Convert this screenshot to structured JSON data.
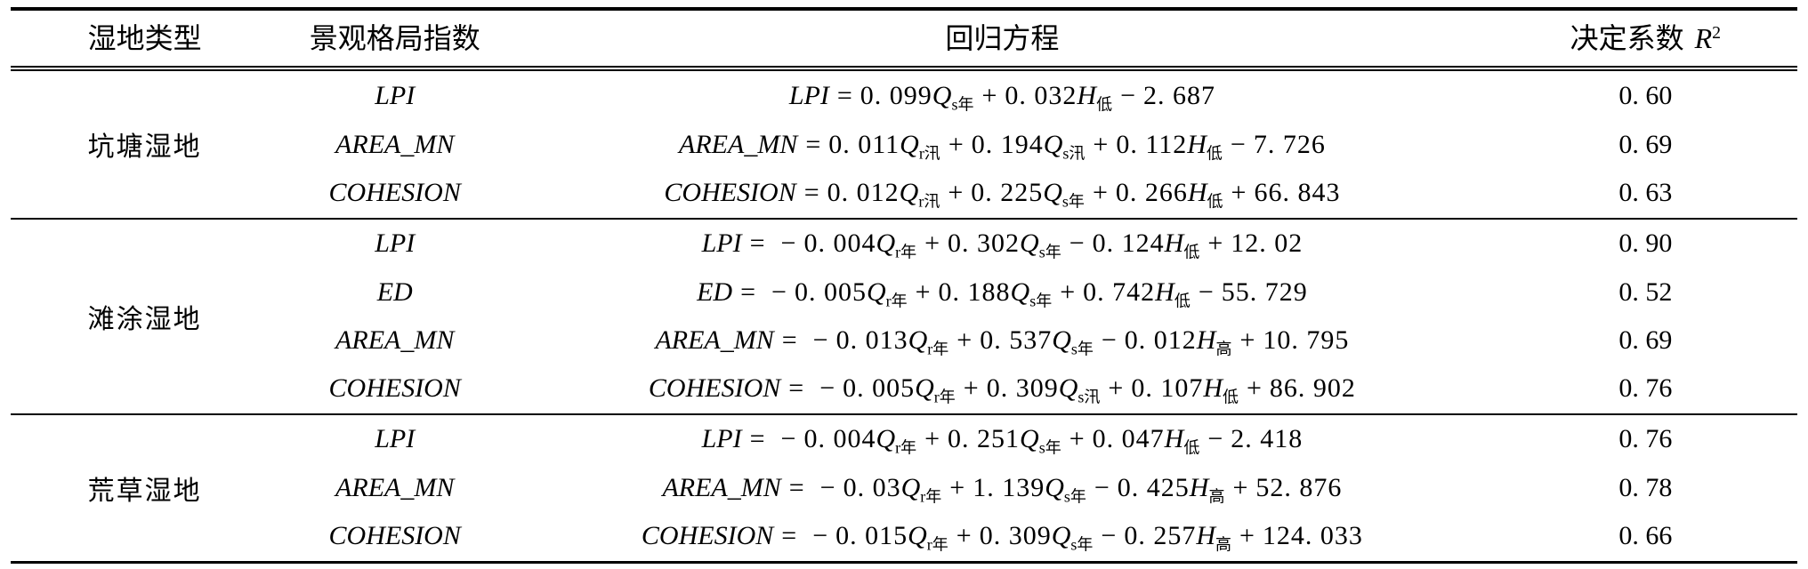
{
  "table": {
    "headers": {
      "wetland_type": "湿地类型",
      "index": "景观格局指数",
      "equation": "回归方程",
      "r2_prefix": "决定系数",
      "r2_symbol": "R",
      "r2_sup": "2"
    },
    "groups": [
      {
        "type": "坑塘湿地",
        "rows": [
          {
            "index": "LPI",
            "r2": "0. 60",
            "eq": {
              "lhs": "LPI",
              "terms": [
                {
                  "sign": "",
                  "coef": "0. 099",
                  "v": "Q",
                  "sub": "s年"
                },
                {
                  "sign": "+",
                  "coef": "0. 032",
                  "v": "H",
                  "sub": "低"
                }
              ],
              "const_sign": "−",
              "const": "2. 687"
            }
          },
          {
            "index": "AREA_MN",
            "r2": "0. 69",
            "eq": {
              "lhs": "AREA_MN",
              "terms": [
                {
                  "sign": "",
                  "coef": "0. 011",
                  "v": "Q",
                  "sub": "r汛"
                },
                {
                  "sign": "+",
                  "coef": "0. 194",
                  "v": "Q",
                  "sub": "s汛"
                },
                {
                  "sign": "+",
                  "coef": "0. 112",
                  "v": "H",
                  "sub": "低"
                }
              ],
              "const_sign": "−",
              "const": "7. 726"
            }
          },
          {
            "index": "COHESION",
            "r2": "0. 63",
            "eq": {
              "lhs": "COHESION",
              "terms": [
                {
                  "sign": "",
                  "coef": "0. 012",
                  "v": "Q",
                  "sub": "r汛"
                },
                {
                  "sign": "+",
                  "coef": "0. 225",
                  "v": "Q",
                  "sub": "s年"
                },
                {
                  "sign": "+",
                  "coef": "0. 266",
                  "v": "H",
                  "sub": "低"
                }
              ],
              "const_sign": "+",
              "const": "66. 843"
            }
          }
        ]
      },
      {
        "type": "滩涂湿地",
        "rows": [
          {
            "index": "LPI",
            "r2": "0. 90",
            "eq": {
              "lhs": "LPI",
              "terms": [
                {
                  "sign": "−",
                  "coef": "0. 004",
                  "v": "Q",
                  "sub": "r年"
                },
                {
                  "sign": "+",
                  "coef": "0. 302",
                  "v": "Q",
                  "sub": "s年"
                },
                {
                  "sign": "−",
                  "coef": "0. 124",
                  "v": "H",
                  "sub": "低"
                }
              ],
              "const_sign": "+",
              "const": "12. 02"
            }
          },
          {
            "index": "ED",
            "r2": "0. 52",
            "eq": {
              "lhs": "ED",
              "terms": [
                {
                  "sign": "−",
                  "coef": "0. 005",
                  "v": "Q",
                  "sub": "r年"
                },
                {
                  "sign": "+",
                  "coef": "0. 188",
                  "v": "Q",
                  "sub": "s年"
                },
                {
                  "sign": "+",
                  "coef": "0. 742",
                  "v": "H",
                  "sub": "低"
                }
              ],
              "const_sign": "−",
              "const": "55. 729"
            }
          },
          {
            "index": "AREA_MN",
            "r2": "0. 69",
            "eq": {
              "lhs": "AREA_MN",
              "terms": [
                {
                  "sign": "−",
                  "coef": "0. 013",
                  "v": "Q",
                  "sub": "r年"
                },
                {
                  "sign": "+",
                  "coef": "0. 537",
                  "v": "Q",
                  "sub": "s年"
                },
                {
                  "sign": "−",
                  "coef": "0. 012",
                  "v": "H",
                  "sub": "高"
                }
              ],
              "const_sign": "+",
              "const": "10. 795"
            }
          },
          {
            "index": "COHESION",
            "r2": "0. 76",
            "eq": {
              "lhs": "COHESION",
              "terms": [
                {
                  "sign": "−",
                  "coef": "0. 005",
                  "v": "Q",
                  "sub": "r年"
                },
                {
                  "sign": "+",
                  "coef": "0. 309",
                  "v": "Q",
                  "sub": "s汛"
                },
                {
                  "sign": "+",
                  "coef": "0. 107",
                  "v": "H",
                  "sub": "低"
                }
              ],
              "const_sign": "+",
              "const": "86. 902"
            }
          }
        ]
      },
      {
        "type": "荒草湿地",
        "rows": [
          {
            "index": "LPI",
            "r2": "0. 76",
            "eq": {
              "lhs": "LPI",
              "terms": [
                {
                  "sign": "−",
                  "coef": "0. 004",
                  "v": "Q",
                  "sub": "r年"
                },
                {
                  "sign": "+",
                  "coef": "0. 251",
                  "v": "Q",
                  "sub": "s年"
                },
                {
                  "sign": "+",
                  "coef": "0. 047",
                  "v": "H",
                  "sub": "低"
                }
              ],
              "const_sign": "−",
              "const": "2. 418"
            }
          },
          {
            "index": "AREA_MN",
            "r2": "0. 78",
            "eq": {
              "lhs": "AREA_MN",
              "terms": [
                {
                  "sign": "−",
                  "coef": "0. 03",
                  "v": "Q",
                  "sub": "r年"
                },
                {
                  "sign": "+",
                  "coef": "1. 139",
                  "v": "Q",
                  "sub": "s年"
                },
                {
                  "sign": "−",
                  "coef": "0. 425",
                  "v": "H",
                  "sub": "高"
                }
              ],
              "const_sign": "+",
              "const": "52. 876"
            }
          },
          {
            "index": "COHESION",
            "r2": "0. 66",
            "eq": {
              "lhs": "COHESION",
              "terms": [
                {
                  "sign": "−",
                  "coef": "0. 015",
                  "v": "Q",
                  "sub": "r年"
                },
                {
                  "sign": "+",
                  "coef": "0. 309",
                  "v": "Q",
                  "sub": "s年"
                },
                {
                  "sign": "−",
                  "coef": "0. 257",
                  "v": "H",
                  "sub": "高"
                }
              ],
              "const_sign": "+",
              "const": "124. 033"
            }
          }
        ]
      }
    ]
  }
}
